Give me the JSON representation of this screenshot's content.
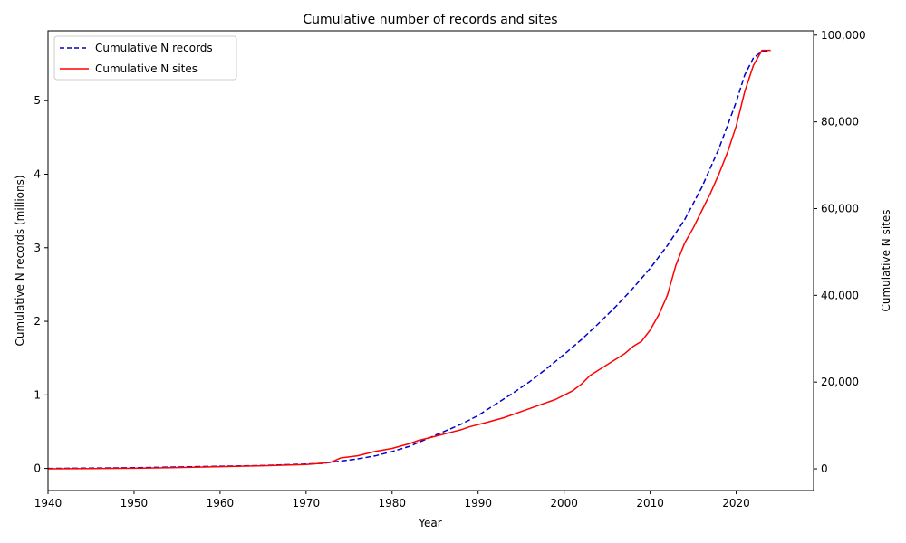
{
  "chart_data": {
    "type": "line",
    "title": "Cumulative number of records and sites",
    "xlabel": "Year",
    "ylabel_left": "Cumulative N records (millions)",
    "ylabel_right": "Cumulative N sites",
    "xlim": [
      1940,
      2029
    ],
    "ylim_left": [
      -0.3,
      5.95
    ],
    "ylim_right": [
      -5000,
      101000
    ],
    "x_ticks": [
      1940,
      1950,
      1960,
      1970,
      1980,
      1990,
      2000,
      2010,
      2020
    ],
    "y_ticks_left": [
      0,
      1,
      2,
      3,
      4,
      5
    ],
    "y_ticks_right": [
      0,
      20000,
      40000,
      60000,
      80000,
      100000
    ],
    "y_tick_labels_right": [
      "0",
      "20,000",
      "40,000",
      "60,000",
      "80,000",
      "100,000"
    ],
    "legend_position": "upper-left",
    "series": [
      {
        "name": "Cumulative N records",
        "axis": "left",
        "color": "#0000cc",
        "style": "dashed",
        "x": [
          1940,
          1945,
          1950,
          1955,
          1960,
          1965,
          1970,
          1972,
          1974,
          1976,
          1978,
          1980,
          1982,
          1984,
          1986,
          1988,
          1990,
          1992,
          1994,
          1996,
          1998,
          2000,
          2002,
          2004,
          2006,
          2008,
          2010,
          2012,
          2014,
          2016,
          2018,
          2020,
          2021,
          2022,
          2023,
          2024
        ],
        "y": [
          0.0,
          0.005,
          0.01,
          0.02,
          0.03,
          0.04,
          0.06,
          0.07,
          0.1,
          0.13,
          0.17,
          0.23,
          0.3,
          0.4,
          0.5,
          0.6,
          0.72,
          0.87,
          1.02,
          1.18,
          1.36,
          1.55,
          1.75,
          1.97,
          2.2,
          2.45,
          2.72,
          3.03,
          3.38,
          3.82,
          4.35,
          4.98,
          5.35,
          5.58,
          5.67,
          5.67
        ]
      },
      {
        "name": "Cumulative N sites",
        "axis": "right",
        "color": "#ff0000",
        "style": "solid",
        "x": [
          1940,
          1945,
          1950,
          1955,
          1960,
          1965,
          1970,
          1972,
          1973,
          1974,
          1976,
          1977,
          1978,
          1980,
          1982,
          1983,
          1985,
          1987,
          1988,
          1989,
          1991,
          1993,
          1995,
          1997,
          1999,
          2001,
          2002,
          2003,
          2005,
          2007,
          2008,
          2009,
          2010,
          2011,
          2012,
          2013,
          2014,
          2015,
          2016,
          2017,
          2018,
          2019,
          2020,
          2021,
          2022,
          2023,
          2024
        ],
        "y": [
          0,
          50,
          150,
          300,
          500,
          700,
          1000,
          1300,
          1600,
          2500,
          3000,
          3500,
          4000,
          4700,
          5800,
          6500,
          7500,
          8500,
          9000,
          9700,
          10700,
          11800,
          13200,
          14600,
          16000,
          18000,
          19500,
          21500,
          24000,
          26500,
          28200,
          29400,
          32000,
          35500,
          40000,
          47000,
          52000,
          55500,
          59500,
          63500,
          68000,
          73000,
          79000,
          87000,
          93000,
          96500,
          96500
        ]
      }
    ]
  }
}
